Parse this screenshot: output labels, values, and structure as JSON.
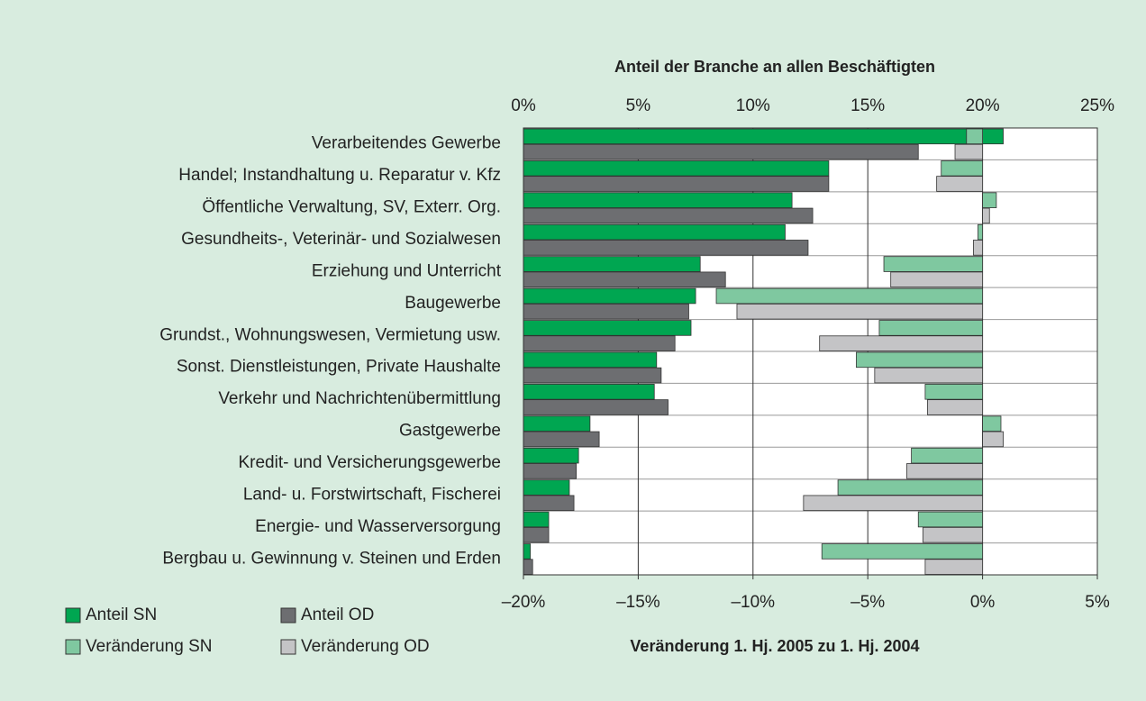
{
  "chart_data": {
    "type": "bar",
    "orientation": "horizontal",
    "xlabel": "Anteil der Branche an allen Beschäftigten",
    "x2label": "Veränderung 1. Hj. 2005 zu 1. Hj. 2004",
    "categories": [
      "Verarbeitendes Gewerbe",
      "Handel; Instandhaltung u. Reparatur v. Kfz",
      "Öffentliche Verwaltung, SV, Exterr. Org.",
      "Gesundheits-, Veterinär- und Sozialwesen",
      "Erziehung und Unterricht",
      "Baugewerbe",
      "Grundst., Wohnungswesen, Vermietung usw.",
      "Sonst. Dienstleistungen, Private Haushalte",
      "Verkehr und Nachrichtenübermittlung",
      "Gastgewerbe",
      "Kredit- und Versicherungsgewerbe",
      "Land- u. Forstwirtschaft, Fischerei",
      "Energie- und Wasserversorgung",
      "Bergbau u. Gewinnung v. Steinen und Erden"
    ],
    "series": [
      {
        "name": "Anteil SN",
        "color": "#00a651",
        "axis": "x",
        "values": [
          20.9,
          13.3,
          11.7,
          11.4,
          7.7,
          7.5,
          7.3,
          5.8,
          5.7,
          2.9,
          2.4,
          2.0,
          1.1,
          0.3
        ]
      },
      {
        "name": "Anteil OD",
        "color": "#6d6e71",
        "axis": "x",
        "values": [
          17.2,
          13.3,
          12.6,
          12.4,
          8.8,
          7.2,
          6.6,
          6.0,
          6.3,
          3.3,
          2.3,
          2.2,
          1.1,
          0.4
        ]
      },
      {
        "name": "Veränderung SN",
        "color": "#7fc8a0",
        "axis": "x2",
        "values": [
          -0.7,
          -1.8,
          0.6,
          -0.2,
          -4.3,
          -11.6,
          -4.5,
          -5.5,
          -2.5,
          0.8,
          -3.1,
          -6.3,
          -2.8,
          -7.0
        ]
      },
      {
        "name": "Veränderung OD",
        "color": "#c4c4c6",
        "axis": "x2",
        "values": [
          -1.2,
          -2.0,
          0.3,
          -0.4,
          -4.0,
          -10.7,
          -7.1,
          -4.7,
          -2.4,
          0.9,
          -3.3,
          -7.8,
          -2.6,
          -2.5
        ]
      }
    ],
    "xlim": [
      0,
      25
    ],
    "xticks": [
      {
        "value": 0,
        "label": "0%"
      },
      {
        "value": 5,
        "label": "5%"
      },
      {
        "value": 10,
        "label": "10%"
      },
      {
        "value": 15,
        "label": "15%"
      },
      {
        "value": 20,
        "label": "20%"
      },
      {
        "value": 25,
        "label": "25%"
      }
    ],
    "x2lim": [
      -20,
      5
    ],
    "x2ticks": [
      {
        "value": -20,
        "label": "–20%"
      },
      {
        "value": -15,
        "label": "–15%"
      },
      {
        "value": -10,
        "label": "–10%"
      },
      {
        "value": -5,
        "label": "–5%"
      },
      {
        "value": 0,
        "label": "0%"
      },
      {
        "value": 5,
        "label": "5%"
      }
    ],
    "grid": true
  }
}
